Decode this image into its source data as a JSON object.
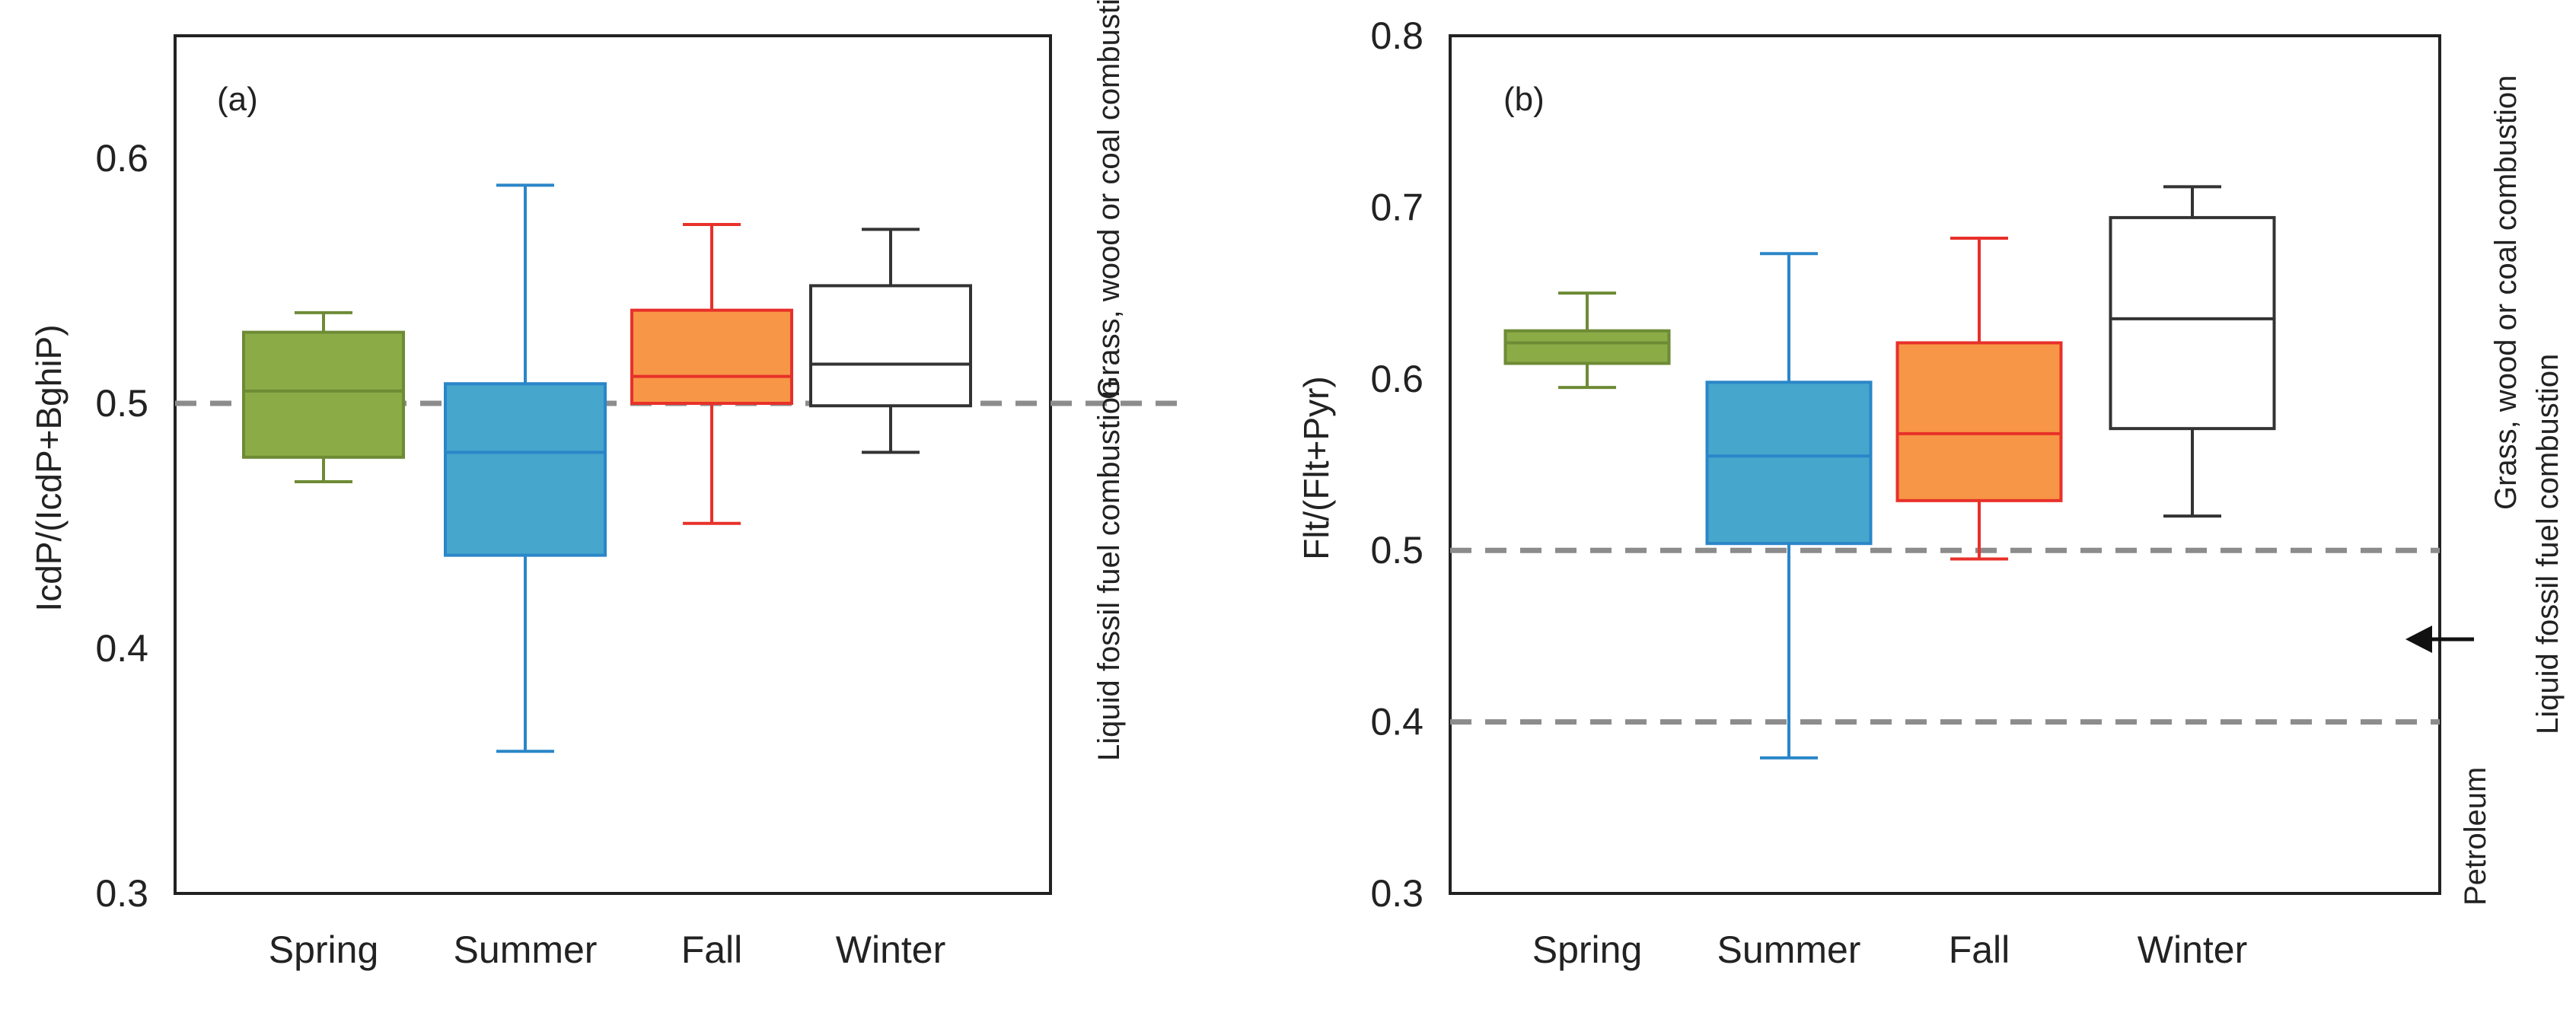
{
  "chart_data": [
    {
      "type": "box",
      "panel_label": "(a)",
      "ylabel": "IcdP/(IcdP+BghiP)",
      "ylim": [
        0.3,
        0.65
      ],
      "yticks": [
        0.3,
        0.4,
        0.5,
        0.6
      ],
      "ytick_labels": [
        "0.3",
        "0.4",
        "0.5",
        "0.6"
      ],
      "categories": [
        "Spring",
        "Summer",
        "Fall",
        "Winter"
      ],
      "boxes": [
        {
          "name": "Spring",
          "min": 0.468,
          "q1": 0.478,
          "median": 0.505,
          "q3": 0.529,
          "max": 0.537,
          "fill": "#8bab47",
          "stroke": "#6e8b35"
        },
        {
          "name": "Summer",
          "min": 0.358,
          "q1": 0.438,
          "median": 0.48,
          "q3": 0.508,
          "max": 0.589,
          "fill": "#46a6cc",
          "stroke": "#2a86c8"
        },
        {
          "name": "Fall",
          "min": 0.451,
          "q1": 0.5,
          "median": 0.511,
          "q3": 0.538,
          "max": 0.573,
          "fill": "#f79646",
          "stroke": "#e8302a"
        },
        {
          "name": "Winter",
          "min": 0.48,
          "q1": 0.499,
          "median": 0.516,
          "q3": 0.548,
          "max": 0.571,
          "fill": "#ffffff",
          "stroke": "#333333"
        }
      ],
      "reference_lines": [
        0.5
      ],
      "annotations": [
        "Grass, wood or coal combustion",
        "Liquid fossil fuel combustion"
      ]
    },
    {
      "type": "box",
      "panel_label": "(b)",
      "ylabel": "Flt/(Flt+Pyr)",
      "ylim": [
        0.3,
        0.8
      ],
      "yticks": [
        0.3,
        0.4,
        0.5,
        0.6,
        0.7,
        0.8
      ],
      "ytick_labels": [
        "0.3",
        "0.4",
        "0.5",
        "0.6",
        "0.7",
        "0.8"
      ],
      "categories": [
        "Spring",
        "Summer",
        "Fall",
        "Winter"
      ],
      "boxes": [
        {
          "name": "Spring",
          "min": 0.595,
          "q1": 0.609,
          "median": 0.621,
          "q3": 0.628,
          "max": 0.65,
          "fill": "#8bab47",
          "stroke": "#6e8b35"
        },
        {
          "name": "Summer",
          "min": 0.379,
          "q1": 0.504,
          "median": 0.555,
          "q3": 0.598,
          "max": 0.673,
          "fill": "#46a6cc",
          "stroke": "#2a86c8"
        },
        {
          "name": "Fall",
          "min": 0.495,
          "q1": 0.529,
          "median": 0.568,
          "q3": 0.621,
          "max": 0.682,
          "fill": "#f79646",
          "stroke": "#e8302a"
        },
        {
          "name": "Winter",
          "min": 0.52,
          "q1": 0.571,
          "median": 0.635,
          "q3": 0.694,
          "max": 0.712,
          "fill": "#ffffff",
          "stroke": "#333333"
        }
      ],
      "reference_lines": [
        0.5,
        0.4
      ],
      "annotations": [
        "Grass, wood or coal combustion",
        "Liquid fossil fuel combustion",
        "Petroleum"
      ]
    }
  ]
}
